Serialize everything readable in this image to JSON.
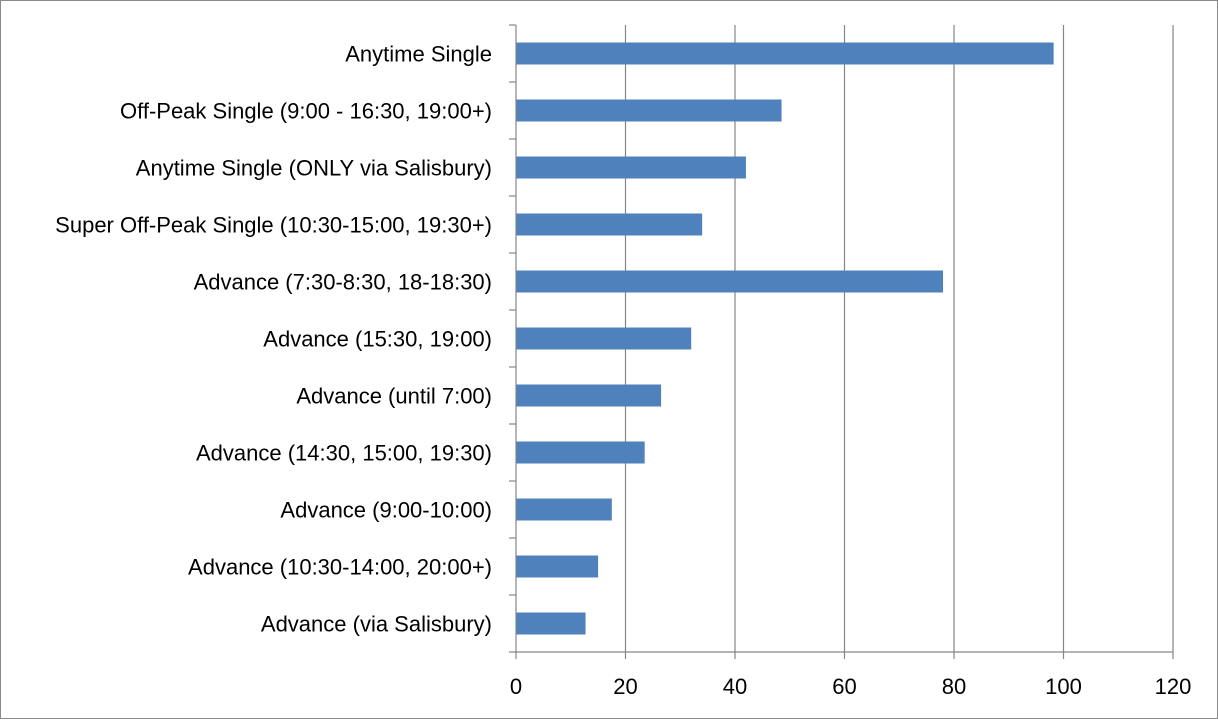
{
  "chart_data": {
    "type": "bar",
    "orientation": "horizontal",
    "title": "",
    "xlabel": "",
    "ylabel": "",
    "categories": [
      "Anytime Single",
      "Off-Peak Single (9:00 - 16:30, 19:00+)",
      "Anytime Single (ONLY via Salisbury)",
      "Super Off-Peak Single (10:30-15:00, 19:30+)",
      "Advance (7:30-8:30, 18-18:30)",
      "Advance (15:30, 19:00)",
      "Advance (until 7:00)",
      "Advance (14:30, 15:00, 19:30)",
      "Advance (9:00-10:00)",
      "Advance (10:30-14:00, 20:00+)",
      "Advance (via Salisbury)"
    ],
    "values": [
      98.2,
      48.5,
      42.0,
      34.0,
      78.0,
      32.0,
      26.5,
      23.5,
      17.5,
      15.0,
      12.7
    ],
    "xlim": [
      0,
      120
    ],
    "xticks": [
      "0",
      "20",
      "40",
      "60",
      "80",
      "100",
      "120"
    ],
    "grid": true,
    "legend": "none",
    "bar_color": "#4f81bd"
  }
}
